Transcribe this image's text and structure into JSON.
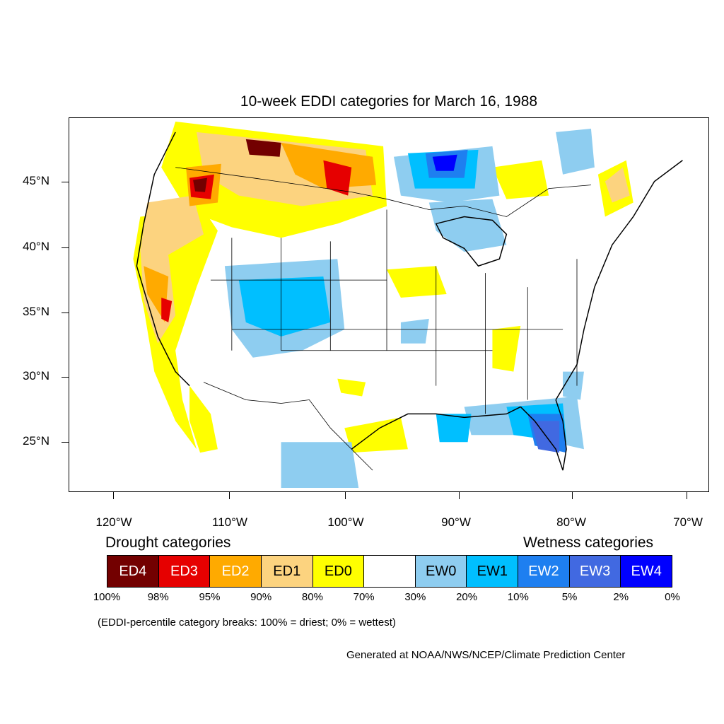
{
  "title": "10-week EDDI categories for March 16, 1988",
  "lat_labels": [
    "45°N",
    "40°N",
    "35°N",
    "30°N",
    "25°N"
  ],
  "lon_labels": [
    "120°W",
    "110°W",
    "100°W",
    "90°W",
    "80°W",
    "70°W"
  ],
  "legend": {
    "drought_title": "Drought categories",
    "wetness_title": "Wetness categories",
    "categories": [
      {
        "label": "ED4",
        "color": "#730000",
        "text_color": "#ffffff"
      },
      {
        "label": "ED3",
        "color": "#e60000",
        "text_color": "#ffffff"
      },
      {
        "label": "ED2",
        "color": "#ffaa00",
        "text_color": "#ffffff"
      },
      {
        "label": "ED1",
        "color": "#fcd37f",
        "text_color": "#000000"
      },
      {
        "label": "ED0",
        "color": "#ffff00",
        "text_color": "#000000"
      },
      {
        "label": "",
        "color": "#ffffff",
        "text_color": "#000000"
      },
      {
        "label": "EW0",
        "color": "#8ecdf0",
        "text_color": "#000000"
      },
      {
        "label": "EW1",
        "color": "#00bfff",
        "text_color": "#000000"
      },
      {
        "label": "EW2",
        "color": "#1e7ff0",
        "text_color": "#ffffff"
      },
      {
        "label": "EW3",
        "color": "#4169e1",
        "text_color": "#ffffff"
      },
      {
        "label": "EW4",
        "color": "#0000ff",
        "text_color": "#ffffff"
      }
    ],
    "breaks": [
      "100%",
      "98%",
      "95%",
      "90%",
      "80%",
      "70%",
      "30%",
      "20%",
      "10%",
      "5%",
      "2%",
      "0%"
    ]
  },
  "note": "(EDDI-percentile category breaks: 100% = driest; 0% = wettest)",
  "credit": "Generated at NOAA/NWS/NCEP/Climate Prediction Center"
}
